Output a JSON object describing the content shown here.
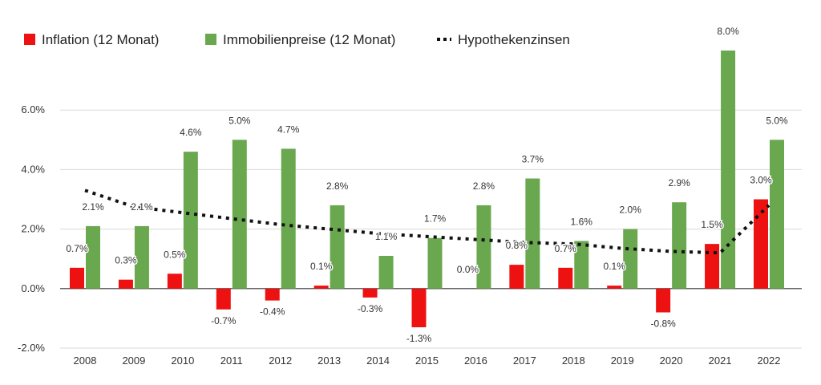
{
  "chart_data": {
    "type": "bar",
    "categories": [
      "2008",
      "2009",
      "2010",
      "2011",
      "2012",
      "2013",
      "2014",
      "2015",
      "2016",
      "2017",
      "2018",
      "2019",
      "2020",
      "2021",
      "2022"
    ],
    "series": [
      {
        "name": "Inflation (12 Monat)",
        "kind": "bar",
        "color": "#ee1111",
        "values": [
          0.7,
          0.3,
          0.5,
          -0.7,
          -0.4,
          0.1,
          -0.3,
          -1.3,
          0.0,
          0.8,
          0.7,
          0.1,
          -0.8,
          1.5,
          3.0
        ],
        "labels": [
          "0.7%",
          "0.3%",
          "0.5%",
          "-0.7%",
          "-0.4%",
          "0.1%",
          "-0.3%",
          "-1.3%",
          "0.0%",
          "0.8%",
          "0.7%",
          "0.1%",
          "-0.8%",
          "1.5%",
          "3.0%"
        ]
      },
      {
        "name": "Immobilienpreise (12 Monat)",
        "kind": "bar",
        "color": "#6aa84f",
        "values": [
          2.1,
          2.1,
          4.6,
          5.0,
          4.7,
          2.8,
          1.1,
          1.7,
          2.8,
          3.7,
          1.6,
          2.0,
          2.9,
          8.0,
          5.0
        ],
        "labels": [
          "2.1%",
          "2.1%",
          "4.6%",
          "5.0%",
          "4.7%",
          "2.8%",
          "1.1%",
          "1.7%",
          "2.8%",
          "3.7%",
          "1.6%",
          "2.0%",
          "2.9%",
          "8.0%",
          "5.0%"
        ]
      },
      {
        "name": "Hypothekenzinsen",
        "kind": "line",
        "style": "dotted",
        "color": "#111111",
        "values": [
          3.3,
          2.75,
          2.55,
          2.35,
          2.15,
          2.0,
          1.85,
          1.75,
          1.65,
          1.55,
          1.5,
          1.35,
          1.25,
          1.2,
          2.8
        ]
      }
    ],
    "yticks": [
      "6.0%",
      "4.0%",
      "2.0%",
      "0.0%",
      "-2.0%"
    ],
    "ytick_values": [
      6,
      4,
      2,
      0,
      -2
    ],
    "ylim": [
      -2,
      8
    ],
    "grid": true,
    "legend_position": "top-left"
  }
}
